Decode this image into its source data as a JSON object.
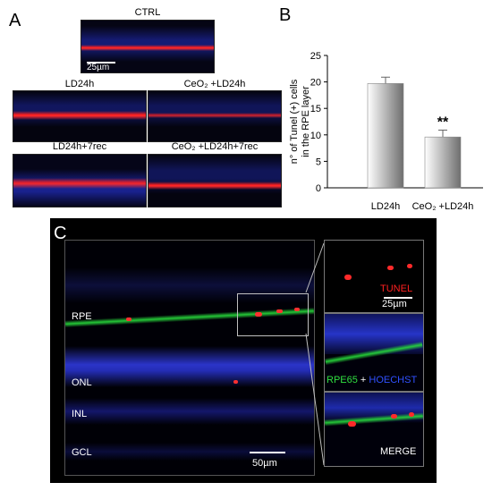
{
  "panels": {
    "a": {
      "label": "A",
      "images": [
        {
          "title": "CTRL",
          "scale_bar": "25µm"
        },
        {
          "title": "LD24h"
        },
        {
          "title": "CeO₂ +LD24h"
        },
        {
          "title": "LD24h+7rec"
        },
        {
          "title": "CeO₂ +LD24h+7rec"
        }
      ]
    },
    "b": {
      "label": "B"
    },
    "c": {
      "label": "C",
      "layers": [
        "RPE",
        "ONL",
        "INL",
        "GCL"
      ],
      "main_scale": "50µm",
      "inset_scale": "25µm",
      "tunel_label": "TUNEL",
      "rpe65_label": "RPE65",
      "plus": " + ",
      "hoechst_label": "HOECHST",
      "merge_label": "MERGE"
    }
  },
  "chart_data": {
    "type": "bar",
    "categories": [
      "LD24h",
      "CeO₂ +LD24h"
    ],
    "values": [
      19.7,
      9.6
    ],
    "errors": [
      1.2,
      1.3
    ],
    "significance": [
      "",
      "**"
    ],
    "ylabel_line1": "n° of Tunel (+) cells",
    "ylabel_line2": "in the RPE layer",
    "yticks": [
      0,
      5,
      10,
      15,
      20,
      25
    ],
    "ylim": [
      0,
      25
    ],
    "colors": {
      "bar_light": "#ffffff",
      "bar_dark": "#6e6e6e"
    }
  }
}
